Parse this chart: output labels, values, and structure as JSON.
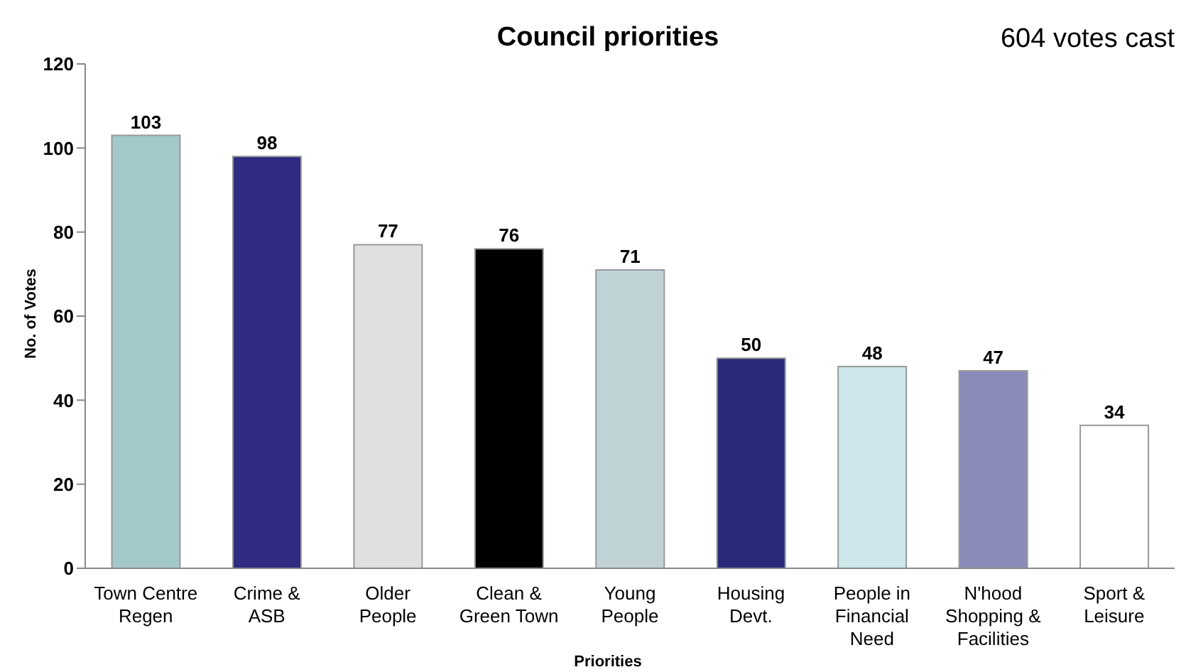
{
  "chart_data": {
    "type": "bar",
    "title": "Council priorities",
    "xlabel": "Priorities",
    "ylabel": "No. of Votes",
    "annotations": [
      "604 votes cast"
    ],
    "categories": [
      "Town Centre\nRegen",
      "Crime &\nASB",
      "Older\nPeople",
      "Clean &\nGreen Town",
      "Young\nPeople",
      "Housing\nDevt.",
      "People in\nFinancial\nNeed",
      "N'hood\nShopping &\nFacilities",
      "Sport &\nLeisure"
    ],
    "values": [
      103,
      98,
      77,
      76,
      71,
      50,
      48,
      47,
      34
    ],
    "colors": [
      "#a3c8ca",
      "#2e2b80",
      "#e0e0e0",
      "#000000",
      "#bfd3d7",
      "#29297a",
      "#cde7ea",
      "#8b8bb9",
      "#ffffff"
    ],
    "ylim": [
      0,
      120
    ],
    "yticks": [
      0,
      20,
      40,
      60,
      80,
      100,
      120
    ],
    "grid": false,
    "data_labels": true
  }
}
